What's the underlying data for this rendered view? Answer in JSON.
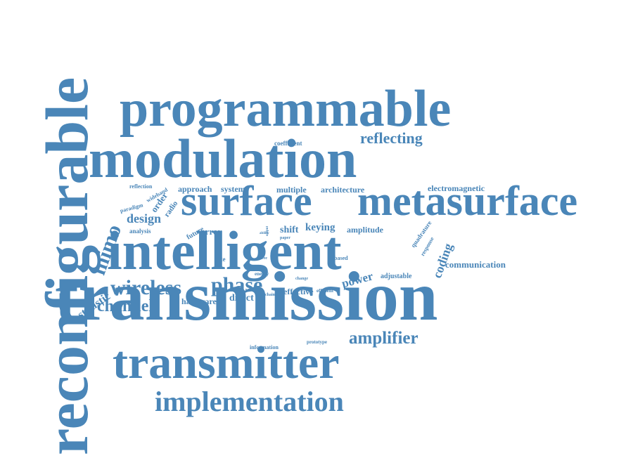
{
  "word_color": "#4a86b8",
  "words": [
    {
      "name": "reconfigurable",
      "text": "reconfigurable"
    },
    {
      "name": "programmable",
      "text": "programmable"
    },
    {
      "name": "modulation",
      "text": "modulation"
    },
    {
      "name": "surface",
      "text": "surface"
    },
    {
      "name": "metasurface",
      "text": "metasurface"
    },
    {
      "name": "intelligent",
      "text": "intelligent"
    },
    {
      "name": "transmission",
      "text": "transmission"
    },
    {
      "name": "transmitter",
      "text": "transmitter"
    },
    {
      "name": "implementation",
      "text": "implementation"
    },
    {
      "name": "wireless",
      "text": "wireless"
    },
    {
      "name": "phase",
      "text": "phase"
    },
    {
      "name": "mimo",
      "text": "mimo"
    },
    {
      "name": "channel",
      "text": "channel"
    },
    {
      "name": "amplifier",
      "text": "amplifier"
    },
    {
      "name": "reflecting",
      "text": "reflecting"
    },
    {
      "name": "coding",
      "text": "coding"
    },
    {
      "name": "design",
      "text": "design"
    },
    {
      "name": "statistic",
      "text": "statistic"
    },
    {
      "name": "power",
      "text": "power"
    },
    {
      "name": "communication",
      "text": "communication"
    },
    {
      "name": "electromagnetic",
      "text": "electromagnetic"
    },
    {
      "name": "multiple",
      "text": "multiple"
    },
    {
      "name": "architecture",
      "text": "architecture"
    },
    {
      "name": "approach",
      "text": "approach"
    },
    {
      "name": "system",
      "text": "system"
    },
    {
      "name": "keying",
      "text": "keying"
    },
    {
      "name": "amplitude",
      "text": "amplitude"
    },
    {
      "name": "shift",
      "text": "shift"
    },
    {
      "name": "error",
      "text": "error"
    },
    {
      "name": "future",
      "text": "future"
    },
    {
      "name": "order",
      "text": "order"
    },
    {
      "name": "radio",
      "text": "radio"
    },
    {
      "name": "analysis",
      "text": "analysis"
    },
    {
      "name": "paradigm",
      "text": "paradigm"
    },
    {
      "name": "wideband",
      "text": "wideband"
    },
    {
      "name": "reflection",
      "text": "reflection"
    },
    {
      "name": "coefficient",
      "text": "coefficient"
    },
    {
      "name": "rate",
      "text": "rate"
    },
    {
      "name": "based",
      "text": "based"
    },
    {
      "name": "hardware",
      "text": "hardware"
    },
    {
      "name": "direct",
      "text": "direct"
    },
    {
      "name": "effective",
      "text": "effective"
    },
    {
      "name": "efficient",
      "text": "efficient"
    },
    {
      "name": "adjustable",
      "text": "adjustable"
    },
    {
      "name": "quadrature",
      "text": "quadrature"
    },
    {
      "name": "response",
      "text": "response"
    },
    {
      "name": "information",
      "text": "information"
    },
    {
      "name": "prototype",
      "text": "prototype"
    },
    {
      "name": "energy",
      "text": "energy"
    },
    {
      "name": "chain",
      "text": "chain"
    },
    {
      "name": "change",
      "text": "change"
    },
    {
      "name": "ability",
      "text": "ability"
    },
    {
      "name": "paper",
      "text": "paper"
    },
    {
      "name": "free",
      "text": "free"
    },
    {
      "name": "output",
      "text": "output"
    }
  ]
}
